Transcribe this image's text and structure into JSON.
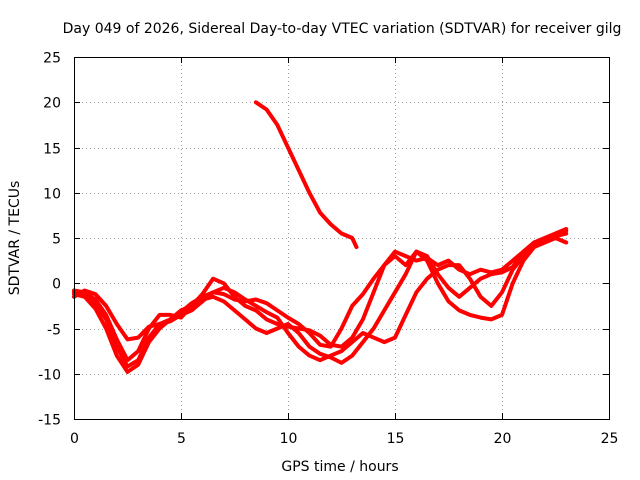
{
  "chart_data": {
    "type": "line",
    "title": "Day 049 of 2026, Sidereal Day-to-day VTEC variation (SDTVAR) for receiver gilg",
    "xlabel": "GPS time / hours",
    "ylabel": "SDTVAR / TECUs",
    "xlim": [
      0,
      25
    ],
    "ylim": [
      -15,
      25
    ],
    "xticks": [
      "0",
      "5",
      "10",
      "15",
      "20",
      "25"
    ],
    "yticks": [
      "-15",
      "-10",
      "-5",
      "0",
      "5",
      "10",
      "15",
      "20",
      "25"
    ],
    "grid": true,
    "series_color": "#ff0000",
    "series": [
      {
        "name": "trace 1",
        "x": [
          0.0,
          0.5,
          1.0,
          1.5,
          2.0,
          2.5,
          3.0,
          3.5,
          4.0,
          4.5,
          5.0,
          5.5,
          6.0,
          6.5,
          7.0,
          7.5,
          8.0,
          8.5,
          9.0,
          9.5,
          10.0,
          10.5,
          11.0,
          11.5,
          12.0,
          12.5,
          13.0,
          13.5,
          14.0,
          14.5,
          15.0,
          15.5,
          16.0,
          16.5,
          17.0,
          17.5,
          18.0,
          18.5,
          19.0,
          19.5,
          20.0,
          20.5,
          21.0,
          21.5,
          22.0,
          22.5,
          23.0
        ],
        "y": [
          -1.5,
          -0.8,
          -1.2,
          -2.5,
          -4.5,
          -6.2,
          -6.0,
          -4.8,
          -4.5,
          -4.0,
          -3.2,
          -2.2,
          -1.5,
          -1.0,
          -1.2,
          -1.8,
          -2.0,
          -1.8,
          -2.2,
          -3.0,
          -3.8,
          -4.5,
          -5.5,
          -6.8,
          -7.0,
          -5.0,
          -2.5,
          -1.2,
          0.5,
          2.0,
          3.5,
          3.0,
          2.5,
          2.8,
          2.0,
          2.5,
          1.5,
          1.0,
          1.5,
          1.2,
          1.5,
          2.5,
          3.5,
          4.5,
          5.0,
          5.2,
          5.5
        ]
      },
      {
        "name": "trace 2",
        "x": [
          0.0,
          0.5,
          1.0,
          1.5,
          2.0,
          2.5,
          3.0,
          3.5,
          4.0,
          4.5,
          5.0,
          5.5,
          6.0,
          6.5,
          7.0,
          7.5,
          8.0,
          8.5,
          9.0,
          9.5,
          10.0,
          10.5,
          11.0,
          11.5,
          12.0,
          12.5,
          13.0,
          13.5,
          14.0,
          14.5,
          15.0,
          15.5,
          16.0,
          16.5,
          17.0,
          17.5,
          18.0,
          18.5,
          19.0,
          19.5,
          20.0,
          20.5,
          21.0,
          21.5,
          22.0,
          22.5,
          23.0
        ],
        "y": [
          -0.8,
          -1.0,
          -1.8,
          -3.5,
          -6.2,
          -8.5,
          -7.5,
          -5.0,
          -3.5,
          -3.5,
          -3.8,
          -2.5,
          -1.2,
          0.5,
          0.0,
          -1.5,
          -2.5,
          -3.0,
          -4.0,
          -4.5,
          -4.8,
          -5.0,
          -5.2,
          -5.8,
          -6.8,
          -7.0,
          -6.0,
          -4.0,
          -1.0,
          2.0,
          3.0,
          2.0,
          3.5,
          3.0,
          1.0,
          -0.5,
          -1.5,
          -0.5,
          0.5,
          1.0,
          1.2,
          1.8,
          3.5,
          4.5,
          4.8,
          5.2,
          5.8
        ]
      },
      {
        "name": "trace 3",
        "x": [
          0.0,
          0.5,
          1.0,
          1.5,
          2.0,
          2.5,
          3.0,
          3.5,
          4.0,
          4.5,
          5.0,
          5.5,
          6.0,
          6.5,
          7.0,
          7.5,
          8.0,
          8.5,
          9.0,
          9.5,
          10.0,
          10.5,
          11.0,
          11.5,
          12.0,
          12.5,
          13.0,
          13.5,
          14.0,
          14.5,
          15.0,
          15.5,
          16.0,
          16.5,
          17.0,
          17.5,
          18.0,
          18.5,
          19.0,
          19.5,
          20.0,
          20.5,
          21.0,
          21.5,
          22.0,
          22.5,
          23.0
        ],
        "y": [
          -1.2,
          -1.5,
          -2.8,
          -5.0,
          -8.0,
          -9.8,
          -9.0,
          -6.5,
          -5.0,
          -4.0,
          -3.0,
          -2.5,
          -1.8,
          -1.5,
          -2.0,
          -3.0,
          -4.0,
          -5.0,
          -5.5,
          -5.0,
          -4.5,
          -5.5,
          -7.0,
          -7.8,
          -8.2,
          -8.8,
          -8.0,
          -6.5,
          -5.0,
          -3.0,
          -1.0,
          1.0,
          3.5,
          2.5,
          0.0,
          -2.0,
          -3.0,
          -3.5,
          -3.8,
          -4.0,
          -3.5,
          0.0,
          2.5,
          4.0,
          5.0,
          5.5,
          6.0
        ]
      },
      {
        "name": "trace 4",
        "x": [
          0.0,
          0.5,
          1.0,
          1.5,
          2.0,
          2.5,
          3.0,
          3.5,
          4.0,
          4.5,
          5.0,
          5.5,
          6.0,
          6.5,
          7.0,
          7.5,
          8.0,
          8.5,
          9.0,
          9.5,
          10.0,
          10.5,
          11.0,
          11.5,
          12.0,
          12.5,
          13.0,
          13.5,
          14.0,
          14.5,
          15.0,
          15.5,
          16.0,
          16.5,
          17.0,
          17.5,
          18.0,
          18.5,
          19.0,
          19.5,
          20.0,
          20.5,
          21.0,
          21.5,
          22.0,
          22.5,
          23.0
        ],
        "y": [
          -1.0,
          -1.2,
          -2.2,
          -4.0,
          -7.0,
          -9.2,
          -8.5,
          -6.0,
          -4.5,
          -4.2,
          -3.5,
          -3.0,
          -2.0,
          -1.0,
          -0.5,
          -1.0,
          -1.8,
          -2.5,
          -3.2,
          -3.8,
          -5.5,
          -7.0,
          -8.0,
          -8.5,
          -8.0,
          -7.5,
          -6.5,
          -5.5,
          -6.0,
          -6.5,
          -6.0,
          -3.5,
          -1.0,
          0.5,
          1.5,
          2.0,
          2.0,
          0.5,
          -1.5,
          -2.5,
          -1.0,
          1.5,
          3.0,
          4.0,
          4.5,
          5.0,
          4.5
        ]
      },
      {
        "name": "trace 5",
        "x": [
          8.5,
          9.0,
          9.5,
          10.0,
          10.5,
          11.0,
          11.5,
          12.0,
          12.5,
          13.0,
          13.2
        ],
        "y": [
          20.0,
          19.2,
          17.5,
          15.0,
          12.5,
          10.0,
          7.8,
          6.5,
          5.5,
          5.0,
          4.0
        ]
      }
    ]
  }
}
